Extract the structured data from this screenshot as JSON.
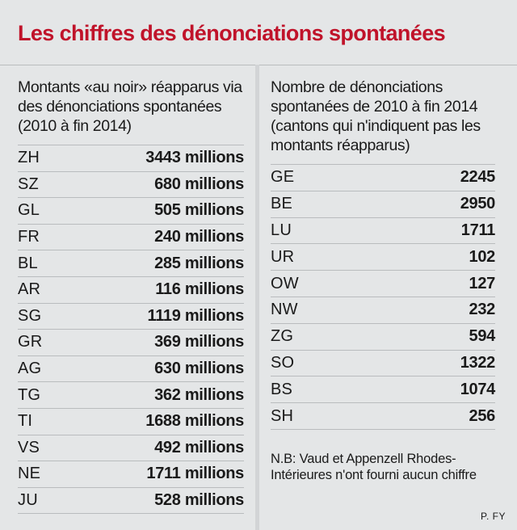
{
  "title": "Les chiffres des dénonciations spontanées",
  "left": {
    "heading": "Montants «au noir» réapparus via des dénonciations spontanées (2010 à fin 2014)",
    "rows": [
      {
        "code": "ZH",
        "value": "3443 millions"
      },
      {
        "code": "SZ",
        "value": "680 millions"
      },
      {
        "code": "GL",
        "value": "505 millions"
      },
      {
        "code": "FR",
        "value": "240 millions"
      },
      {
        "code": "BL",
        "value": "285 millions"
      },
      {
        "code": "AR",
        "value": "116 millions"
      },
      {
        "code": "SG",
        "value": "1119 millions"
      },
      {
        "code": "GR",
        "value": "369 millions"
      },
      {
        "code": "AG",
        "value": "630 millions"
      },
      {
        "code": "TG",
        "value": "362 millions"
      },
      {
        "code": "TI",
        "value": "1688 millions"
      },
      {
        "code": "VS",
        "value": "492 millions"
      },
      {
        "code": "NE",
        "value": "1711 millions"
      },
      {
        "code": "JU",
        "value": "528 millions"
      }
    ]
  },
  "right": {
    "heading": "Nombre de dénonciations spontanées de 2010 à fin 2014 (cantons qui n'indiquent pas les montants réapparus)",
    "rows": [
      {
        "code": "GE",
        "value": "2245"
      },
      {
        "code": "BE",
        "value": "2950"
      },
      {
        "code": "LU",
        "value": "1711"
      },
      {
        "code": "UR",
        "value": "102"
      },
      {
        "code": "OW",
        "value": "127"
      },
      {
        "code": "NW",
        "value": "232"
      },
      {
        "code": "ZG",
        "value": "594"
      },
      {
        "code": "SO",
        "value": "1322"
      },
      {
        "code": "BS",
        "value": "1074"
      },
      {
        "code": "SH",
        "value": "256"
      }
    ],
    "note": "N.B: Vaud et Appenzell Rhodes-Intérieures n'ont fourni aucun chiffre"
  },
  "credit": "P. FY",
  "colors": {
    "title": "#c0132a",
    "background": "#e4e6e7",
    "rule": "#b9bcbe"
  }
}
